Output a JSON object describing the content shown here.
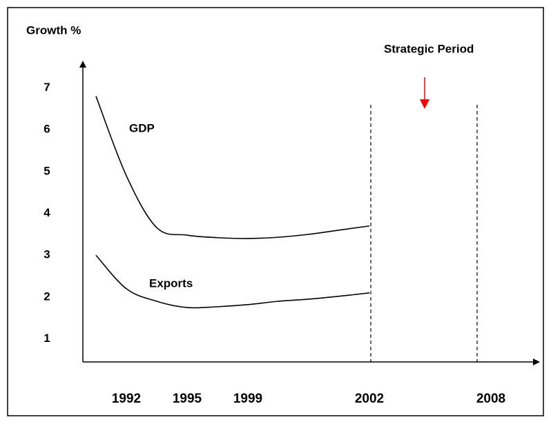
{
  "chart_data": {
    "type": "line",
    "y_label": "Growth %",
    "annotation": "Strategic Period",
    "categories": [
      null,
      "1992",
      null,
      "1995",
      null,
      "1999",
      null,
      null,
      null,
      "2002",
      null,
      null,
      null,
      "2008"
    ],
    "series": [
      {
        "name": "GDP",
        "color": "#000000",
        "values": [
          6.8,
          4.9,
          3.66,
          3.48,
          3.42,
          3.4,
          3.43,
          3.5,
          3.6,
          3.7,
          null,
          null,
          null,
          null
        ]
      },
      {
        "name": "Exports",
        "color": "#000000",
        "values": [
          3.0,
          2.2,
          1.9,
          1.75,
          1.77,
          1.82,
          1.9,
          1.95,
          2.02,
          2.1,
          null,
          null,
          null,
          null
        ]
      }
    ],
    "ylim": [
      0.45,
      7.65
    ],
    "yticks": [
      1,
      2,
      3,
      4,
      5,
      6,
      7
    ],
    "grid": false
  }
}
